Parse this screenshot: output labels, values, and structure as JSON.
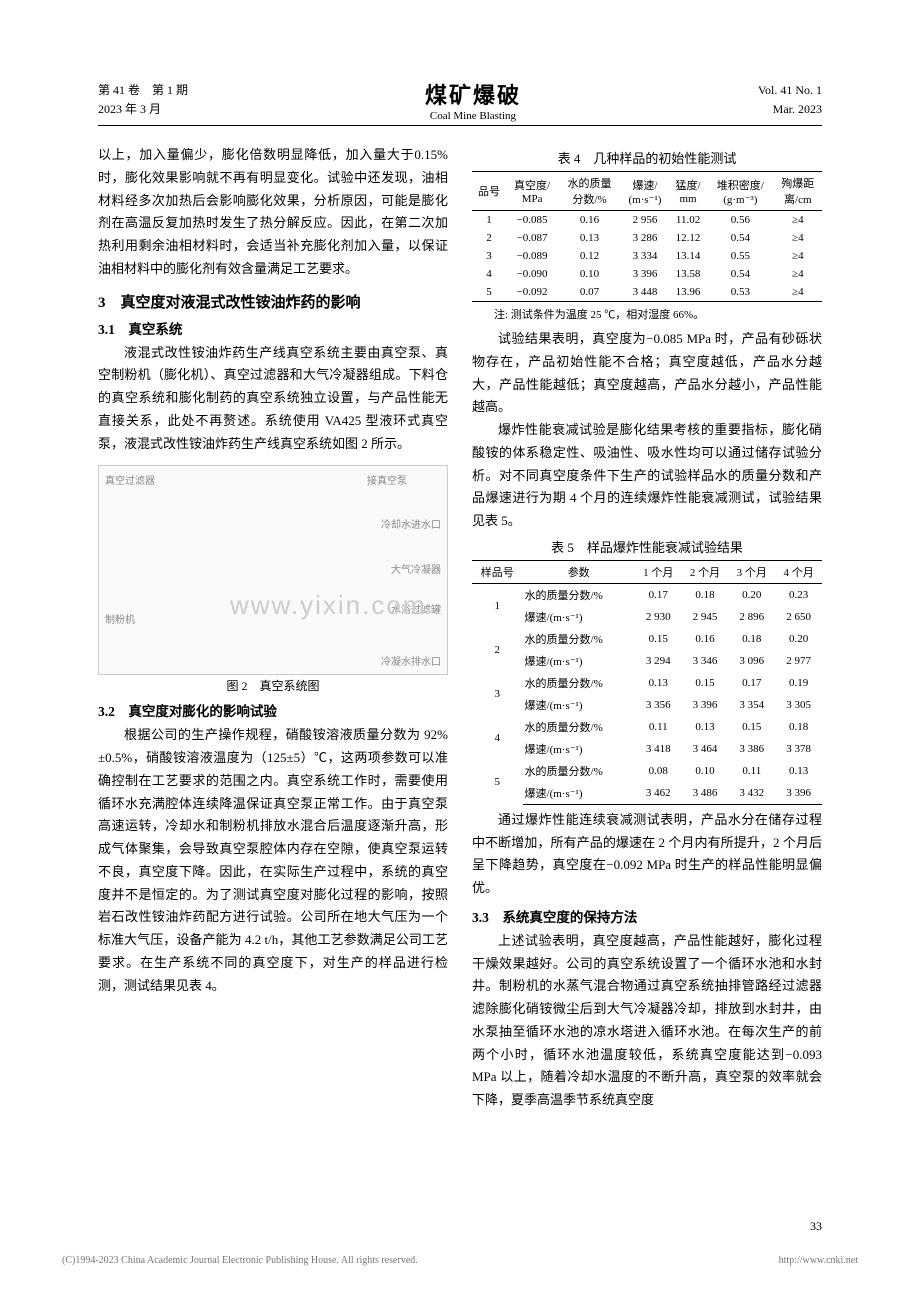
{
  "header": {
    "left_line1": "第 41 卷　第 1 期",
    "left_line2": "2023 年 3 月",
    "center_ch": "煤矿爆破",
    "center_en": "Coal Mine Blasting",
    "right_line1": "Vol. 41 No. 1",
    "right_line2": "Mar. 2023"
  },
  "left_col": {
    "para1": "以上，加入量偏少，膨化倍数明显降低，加入量大于0.15%时，膨化效果影响就不再有明显变化。试验中还发现，油相材料经多次加热后会影响膨化效果，分析原因，可能是膨化剂在高温反复加热时发生了热分解反应。因此，在第二次加热利用剩余油相材料时，会适当补充膨化剂加入量，以保证油相材料中的膨化剂有效含量满足工艺要求。",
    "h1": "3　真空度对液混式改性铵油炸药的影响",
    "h2_1": "3.1　真空系统",
    "para2": "液混式改性铵油炸药生产线真空系统主要由真空泵、真空制粉机（膨化机）、真空过滤器和大气冷凝器组成。下料仓的真空系统和膨化制药的真空系统独立设置，与产品性能无直接关系，此处不再赘述。系统使用 VA425 型液环式真空泵，液混式改性铵油炸药生产线真空系统如图 2 所示。",
    "fig_labels": {
      "a": "真空过滤器",
      "b": "接真空泵",
      "c": "冷却水进水口",
      "d": "大气冷凝器",
      "e": "水浴过滤罐",
      "f": "制粉机",
      "g": "冷凝水排水口"
    },
    "fig_caption": "图 2　真空系统图",
    "h2_2": "3.2　真空度对膨化的影响试验",
    "para3": "根据公司的生产操作规程，硝酸铵溶液质量分数为 92%±0.5%，硝酸铵溶液温度为（125±5）℃，这两项参数可以准确控制在工艺要求的范围之内。真空系统工作时，需要使用循环水充满腔体连续降温保证真空泵正常工作。由于真空泵高速运转，冷却水和制粉机排放水混合后温度逐渐升高，形成气体聚集，会导致真空泵腔体内存在空隙，使真空泵运转不良，真空度下降。因此，在实际生产过程中，系统的真空度并不是恒定的。为了测试真空度对膨化过程的影响，按照岩石改性铵油炸药配方进行试验。公司所在地大气压为一个标准大气压，设备产能为 4.2 t/h，其他工艺参数满足公司工艺要求。在生产系统不同的真空度下，对生产的样品进行检测，测试结果见表 4。"
  },
  "right_col": {
    "table4": {
      "caption": "表 4　几种样品的初始性能测试",
      "headers": [
        "品号",
        "真空度/\nMPa",
        "水的质量\n分数/%",
        "爆速/\n(m·s⁻¹)",
        "猛度/\nmm",
        "堆积密度/\n(g·m⁻³)",
        "殉爆距\n离/cm"
      ],
      "rows": [
        [
          "1",
          "−0.085",
          "0.16",
          "2 956",
          "11.02",
          "0.56",
          "≥4"
        ],
        [
          "2",
          "−0.087",
          "0.13",
          "3 286",
          "12.12",
          "0.54",
          "≥4"
        ],
        [
          "3",
          "−0.089",
          "0.12",
          "3 334",
          "13.14",
          "0.55",
          "≥4"
        ],
        [
          "4",
          "−0.090",
          "0.10",
          "3 396",
          "13.58",
          "0.54",
          "≥4"
        ],
        [
          "5",
          "−0.092",
          "0.07",
          "3 448",
          "13.96",
          "0.53",
          "≥4"
        ]
      ],
      "note": "注: 测试条件为温度 25 ℃，相对湿度 66%。"
    },
    "para1": "试验结果表明，真空度为−0.085 MPa 时，产品有砂砾状物存在，产品初始性能不合格；真空度越低，产品水分越大，产品性能越低；真空度越高，产品水分越小，产品性能越高。",
    "para2": "爆炸性能衰减试验是膨化结果考核的重要指标，膨化硝酸铵的体系稳定性、吸油性、吸水性均可以通过储存试验分析。对不同真空度条件下生产的试验样品水的质量分数和产品爆速进行为期 4 个月的连续爆炸性能衰减测试，试验结果见表 5。",
    "table5": {
      "caption": "表 5　样品爆炸性能衰减试验结果",
      "headers": [
        "样品号",
        "参数",
        "1 个月",
        "2 个月",
        "3 个月",
        "4 个月"
      ],
      "rows": [
        [
          "1",
          "水的质量分数/%",
          "0.17",
          "0.18",
          "0.20",
          "0.23"
        ],
        [
          "",
          "爆速/(m·s⁻¹)",
          "2 930",
          "2 945",
          "2 896",
          "2 650"
        ],
        [
          "2",
          "水的质量分数/%",
          "0.15",
          "0.16",
          "0.18",
          "0.20"
        ],
        [
          "",
          "爆速/(m·s⁻¹)",
          "3 294",
          "3 346",
          "3 096",
          "2 977"
        ],
        [
          "3",
          "水的质量分数/%",
          "0.13",
          "0.15",
          "0.17",
          "0.19"
        ],
        [
          "",
          "爆速/(m·s⁻¹)",
          "3 356",
          "3 396",
          "3 354",
          "3 305"
        ],
        [
          "4",
          "水的质量分数/%",
          "0.11",
          "0.13",
          "0.15",
          "0.18"
        ],
        [
          "",
          "爆速/(m·s⁻¹)",
          "3 418",
          "3 464",
          "3 386",
          "3 378"
        ],
        [
          "5",
          "水的质量分数/%",
          "0.08",
          "0.10",
          "0.11",
          "0.13"
        ],
        [
          "",
          "爆速/(m·s⁻¹)",
          "3 462",
          "3 486",
          "3 432",
          "3 396"
        ]
      ]
    },
    "para3": "通过爆炸性能连续衰减测试表明，产品水分在储存过程中不断增加，所有产品的爆速在 2 个月内有所提升，2 个月后呈下降趋势，真空度在−0.092 MPa 时生产的样品性能明显偏优。",
    "h2_3": "3.3　系统真空度的保持方法",
    "para4": "上述试验表明，真空度越高，产品性能越好，膨化过程干燥效果越好。公司的真空系统设置了一个循环水池和水封井。制粉机的水蒸气混合物通过真空系统抽排管路经过滤器滤除膨化硝铵微尘后到大气冷凝器冷却，排放到水封井，由水泵抽至循环水池的凉水塔进入循环水池。在每次生产的前两个小时，循环水池温度较低，系统真空度能达到−0.093 MPa 以上，随着冷却水温度的不断升高，真空泵的效率就会下降，夏季高温季节系统真空度"
  },
  "page_num": "33",
  "footer": {
    "left": "(C)1994-2023 China Academic Journal Electronic Publishing House. All rights reserved.",
    "right": "http://www.cnki.net"
  },
  "watermark": "www.yixin.com"
}
